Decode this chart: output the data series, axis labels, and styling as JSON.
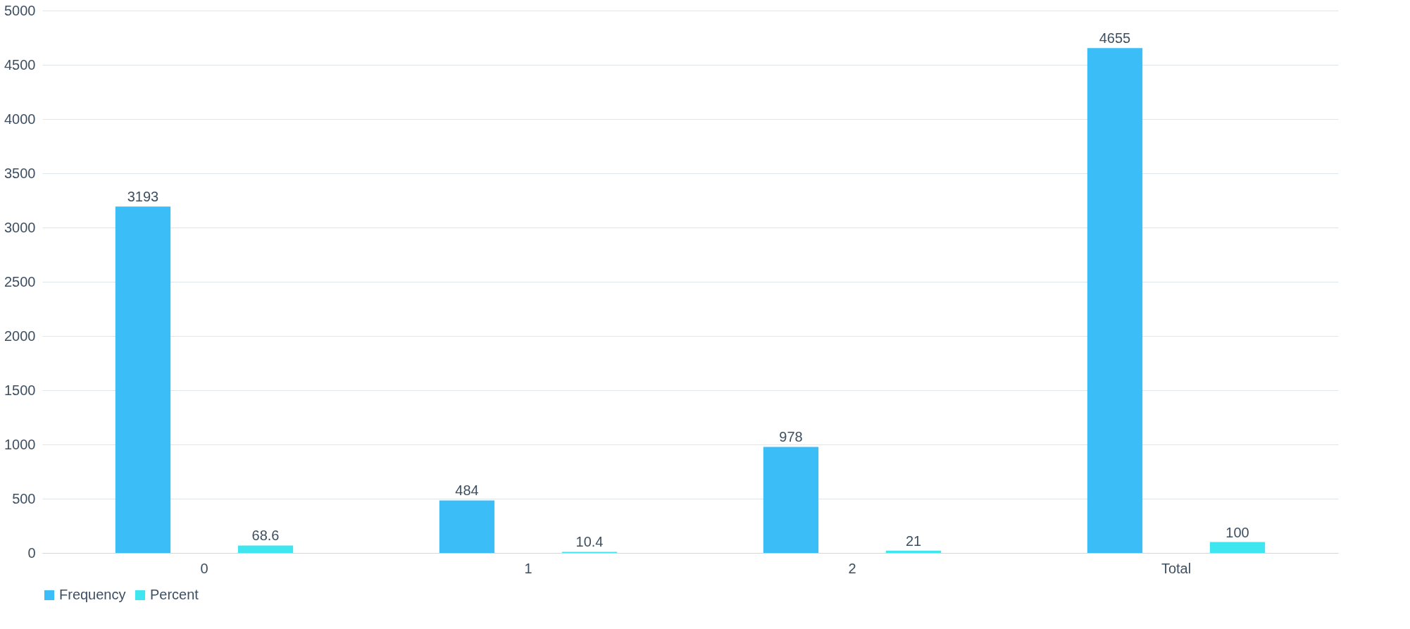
{
  "chart_data": {
    "type": "bar",
    "categories": [
      "0",
      "1",
      "2",
      "Total"
    ],
    "series": [
      {
        "name": "Frequency",
        "color": "#3bbef8",
        "values": [
          3193,
          484,
          978,
          4655
        ]
      },
      {
        "name": "Percent",
        "color": "#3fe6f0",
        "values": [
          68.6,
          10.4,
          21,
          100
        ]
      }
    ],
    "ylim": [
      0,
      5000
    ],
    "yticks": [
      0,
      500,
      1000,
      1500,
      2000,
      2500,
      3000,
      3500,
      4000,
      4500,
      5000
    ],
    "grid": "y",
    "legend": "bottom",
    "data_labels": true
  }
}
